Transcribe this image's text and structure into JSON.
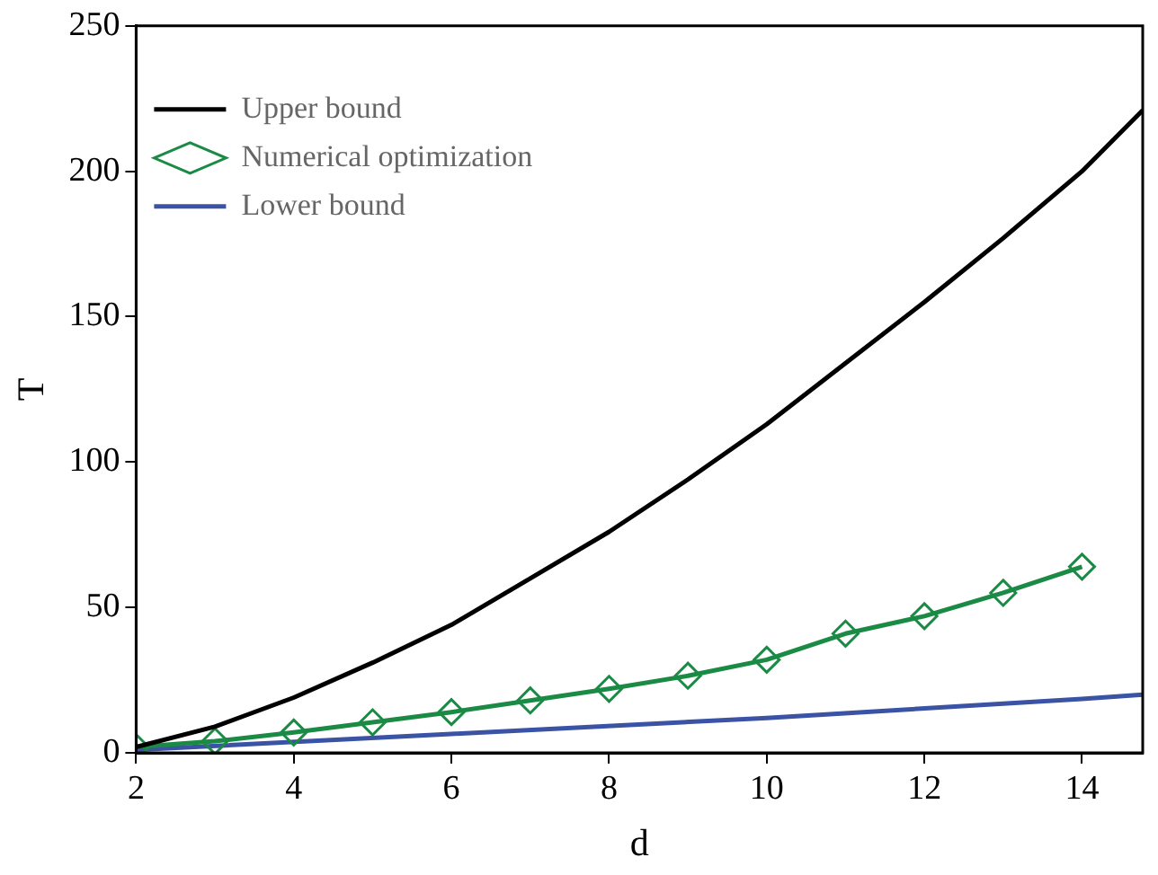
{
  "chart_data": {
    "type": "line",
    "xlabel": "d",
    "ylabel": "T",
    "xlim": [
      2,
      14.77
    ],
    "xticks": [
      2,
      4,
      6,
      8,
      10,
      12,
      14
    ],
    "ylim": [
      0,
      250
    ],
    "yticks": [
      0,
      50,
      100,
      150,
      200,
      250
    ],
    "grid": false,
    "legend": "top left",
    "line_style": "solid",
    "series": [
      {
        "name": "Upper bound",
        "color": "#000000",
        "marker": "none",
        "x": [
          2,
          3,
          4,
          5,
          6,
          7,
          8,
          9,
          10,
          11,
          12,
          13,
          14,
          14.77
        ],
        "values": [
          2,
          9,
          19,
          31,
          44,
          60,
          76,
          94,
          113,
          134,
          155,
          177,
          200,
          221
        ]
      },
      {
        "name": "Numerical optimization",
        "color": "#1a8a45",
        "marker": "diamond",
        "x": [
          2,
          3,
          4,
          5,
          6,
          7,
          8,
          9,
          10,
          11,
          12,
          13,
          14
        ],
        "values": [
          2,
          4,
          7,
          10.5,
          14,
          18,
          22,
          26.5,
          32,
          41,
          47,
          55,
          64
        ]
      },
      {
        "name": "Lower bound",
        "color": "#3a53a4",
        "marker": "none",
        "x": [
          2,
          6,
          10,
          14,
          14.77
        ],
        "values": [
          1,
          6.5,
          12,
          18.5,
          20
        ]
      }
    ]
  }
}
